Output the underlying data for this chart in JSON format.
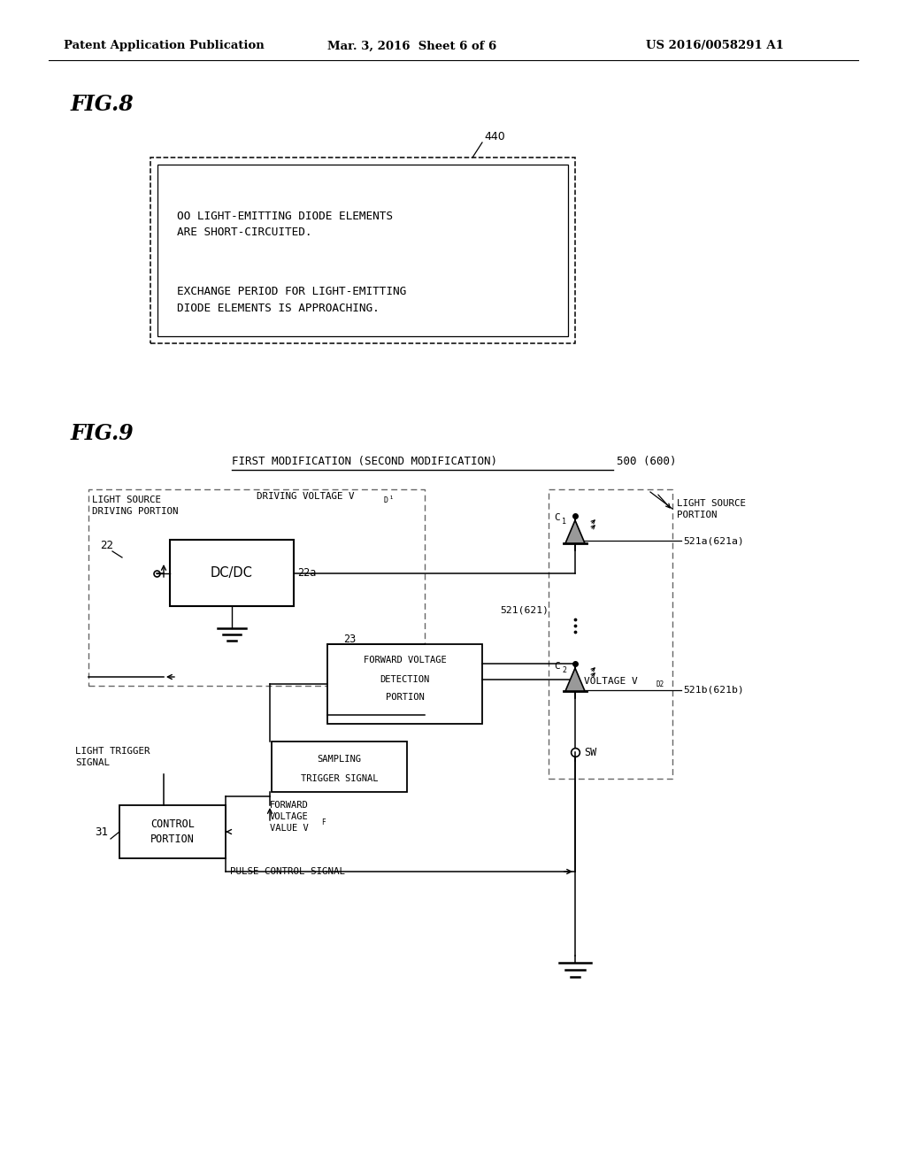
{
  "bg_color": "#ffffff",
  "header_left": "Patent Application Publication",
  "header_center": "Mar. 3, 2016  Sheet 6 of 6",
  "header_right": "US 2016/0058291 A1"
}
